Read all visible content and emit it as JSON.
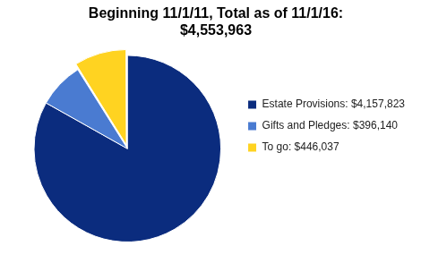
{
  "chart_data": {
    "type": "pie",
    "title": [
      "Beginning 11/1/11, Total as of 11/1/16:",
      "$4,553,963"
    ],
    "categories": [
      "Estate Provisions: $4,157,823",
      "Gifts and Pledges: $396,140",
      "To go: $446,037"
    ],
    "values": [
      4157823,
      396140,
      446037
    ],
    "colors": [
      "#0b2c7e",
      "#4a7bd1",
      "#ffd321"
    ],
    "legend": "right"
  }
}
